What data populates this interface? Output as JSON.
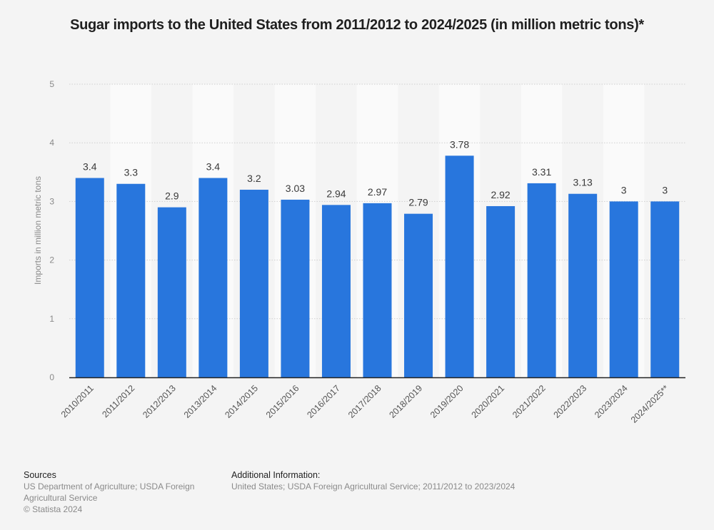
{
  "chart_data": {
    "type": "bar",
    "title": "Sugar imports to the United States from 2011/2012 to 2024/2025 (in million metric tons)*",
    "xlabel": "",
    "ylabel": "Imports in million metric tons",
    "ylim": [
      0,
      5
    ],
    "yticks": [
      0,
      1,
      2,
      3,
      4,
      5
    ],
    "grid": true,
    "categories": [
      "2010/2011",
      "2011/2012",
      "2012/2013",
      "2013/2014",
      "2014/2015",
      "2015/2016",
      "2016/2017",
      "2017/2018",
      "2018/2019",
      "2019/2020",
      "2020/2021",
      "2021/2022",
      "2022/2023",
      "2023/2024",
      "2024/2025**"
    ],
    "values": [
      3.4,
      3.3,
      2.9,
      3.4,
      3.2,
      3.03,
      2.94,
      2.97,
      2.79,
      3.78,
      2.92,
      3.31,
      3.13,
      3,
      3
    ],
    "data_labels": [
      "3.4",
      "3.3",
      "2.9",
      "3.4",
      "3.2",
      "3.03",
      "2.94",
      "2.97",
      "2.79",
      "3.78",
      "2.92",
      "3.31",
      "3.13",
      "3",
      "3"
    ],
    "bar_color": "#2876dd"
  },
  "footer": {
    "sources_heading": "Sources",
    "sources_line1": "US Department of Agriculture; USDA Foreign",
    "sources_line2": "Agricultural Service",
    "copyright": "© Statista 2024",
    "additional_heading": "Additional Information:",
    "additional_text": "United States;  USDA Foreign Agricultural Service; 2011/2012 to 2023/2024"
  }
}
